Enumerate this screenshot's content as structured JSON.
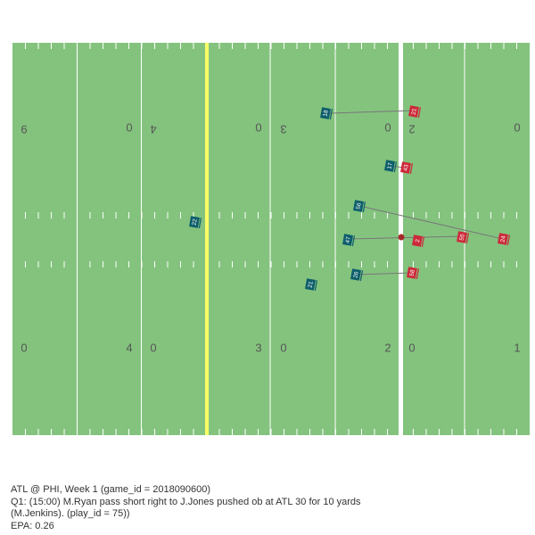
{
  "field": {
    "turf_color": "#84c37e",
    "line_color": "#ffffff",
    "los_color": "#ffffff",
    "first_down_color": "#fdfd66",
    "yard_numbers": [
      {
        "row": "top",
        "text": "9",
        "flip": true
      },
      {
        "row": "top",
        "text": "0",
        "flip": false
      },
      {
        "row": "top",
        "text": "4",
        "flip": true
      },
      {
        "row": "top",
        "text": "0",
        "flip": false
      },
      {
        "row": "top",
        "text": "3",
        "flip": true
      },
      {
        "row": "top",
        "text": "0",
        "flip": false
      },
      {
        "row": "top",
        "text": "2",
        "flip": true
      },
      {
        "row": "top",
        "text": "0",
        "flip": false
      },
      {
        "row": "bottom",
        "text": "0",
        "flip": false
      },
      {
        "row": "bottom",
        "text": "4",
        "flip": false
      },
      {
        "row": "bottom",
        "text": "0",
        "flip": false
      },
      {
        "row": "bottom",
        "text": "3",
        "flip": false
      },
      {
        "row": "bottom",
        "text": "0",
        "flip": false
      },
      {
        "row": "bottom",
        "text": "2",
        "flip": false
      },
      {
        "row": "bottom",
        "text": "0",
        "flip": false
      },
      {
        "row": "bottom",
        "text": "1",
        "flip": false
      }
    ]
  },
  "teams": {
    "offense": {
      "abbr": "ATL",
      "color": "#0e5e6b"
    },
    "defense": {
      "abbr": "PHI",
      "color": "#cc2a3a"
    }
  },
  "ball": {
    "color": "#a52a2a"
  },
  "players": [
    {
      "jersey": "18",
      "team": "offense"
    },
    {
      "jersey": "21",
      "team": "defense"
    },
    {
      "jersey": "17",
      "team": "offense"
    },
    {
      "jersey": "43",
      "team": "defense"
    },
    {
      "jersey": "56",
      "team": "offense"
    },
    {
      "jersey": "24",
      "team": "defense"
    },
    {
      "jersey": "47",
      "team": "offense"
    },
    {
      "jersey": "2",
      "team": "defense"
    },
    {
      "jersey": "55",
      "team": "defense"
    },
    {
      "jersey": "26",
      "team": "offense"
    },
    {
      "jersey": "58",
      "team": "defense"
    },
    {
      "jersey": "21",
      "team": "offense"
    },
    {
      "jersey": "22",
      "team": "offense"
    }
  ],
  "caption": {
    "line1": "ATL @ PHI, Week 1 (game_id = 2018090600)",
    "line2": "Q1: (15:00) M.Ryan pass short right to J.Jones pushed ob at ATL 30 for 10 yards",
    "line3": "(M.Jenkins). (play_id = 75))",
    "line4": "EPA: 0.26"
  }
}
